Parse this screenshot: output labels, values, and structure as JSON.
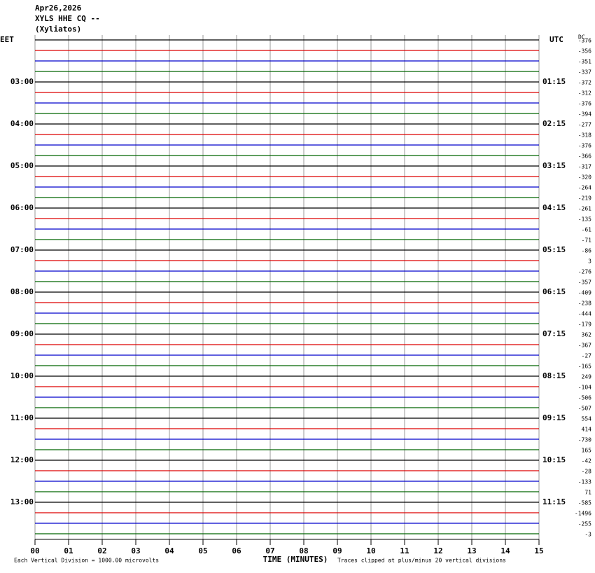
{
  "chart_data": {
    "type": "helicorder",
    "title_lines": [
      "Apr26,2026",
      "XYLS HHE CQ --",
      "(Xyliatos)"
    ],
    "left_zone": "EET",
    "right_zone": "UTC",
    "offset_header": "DC",
    "x_label": "TIME (MINUTES)",
    "scale_note": "Each Vertical Division = 1000.00 microvolts",
    "clip_note": "Traces clipped at plus/minus 20 vertical divisions",
    "xlim": [
      0,
      15
    ],
    "xticks": [
      {
        "value": 0,
        "label": "00"
      },
      {
        "value": 1,
        "label": "01"
      },
      {
        "value": 2,
        "label": "02"
      },
      {
        "value": 3,
        "label": "03"
      },
      {
        "value": 4,
        "label": "04"
      },
      {
        "value": 5,
        "label": "05"
      },
      {
        "value": 6,
        "label": "06"
      },
      {
        "value": 7,
        "label": "07"
      },
      {
        "value": 8,
        "label": "08"
      },
      {
        "value": 9,
        "label": "09"
      },
      {
        "value": 10,
        "label": "10"
      },
      {
        "value": 11,
        "label": "11"
      },
      {
        "value": 12,
        "label": "12"
      },
      {
        "value": 13,
        "label": "13"
      },
      {
        "value": 14,
        "label": "14"
      },
      {
        "value": 15,
        "label": "15"
      }
    ],
    "grid": true,
    "trace_colors": [
      "#000000",
      "#dd0000",
      "#0000cc",
      "#006600"
    ],
    "left_labels": [
      null,
      null,
      null,
      null,
      "03:00",
      null,
      null,
      null,
      "04:00",
      null,
      null,
      null,
      "05:00",
      null,
      null,
      null,
      "06:00",
      null,
      null,
      null,
      "07:00",
      null,
      null,
      null,
      "08:00",
      null,
      null,
      null,
      "09:00",
      null,
      null,
      null,
      "10:00",
      null,
      null,
      null,
      "11:00",
      null,
      null,
      null,
      "12:00",
      null,
      null,
      null,
      "13:00",
      null,
      null,
      null
    ],
    "right_labels": [
      null,
      null,
      null,
      null,
      "01:15",
      null,
      null,
      null,
      "02:15",
      null,
      null,
      null,
      "03:15",
      null,
      null,
      null,
      "04:15",
      null,
      null,
      null,
      "05:15",
      null,
      null,
      null,
      "06:15",
      null,
      null,
      null,
      "07:15",
      null,
      null,
      null,
      "08:15",
      null,
      null,
      null,
      "09:15",
      null,
      null,
      null,
      "10:15",
      null,
      null,
      null,
      "11:15",
      null,
      null,
      null
    ],
    "dc_offsets": [
      -376,
      -356,
      -351,
      -337,
      -372,
      -312,
      -376,
      -394,
      -277,
      -318,
      -376,
      -366,
      -317,
      -320,
      -264,
      -219,
      -261,
      -135,
      -61,
      -71,
      -86,
      3,
      -276,
      -357,
      -409,
      -238,
      -444,
      -179,
      362,
      -367,
      -27,
      -165,
      249,
      -104,
      -506,
      -507,
      554,
      414,
      -730,
      165,
      -42,
      -28,
      -133,
      71,
      -585,
      -1496,
      -255,
      -3
    ]
  }
}
